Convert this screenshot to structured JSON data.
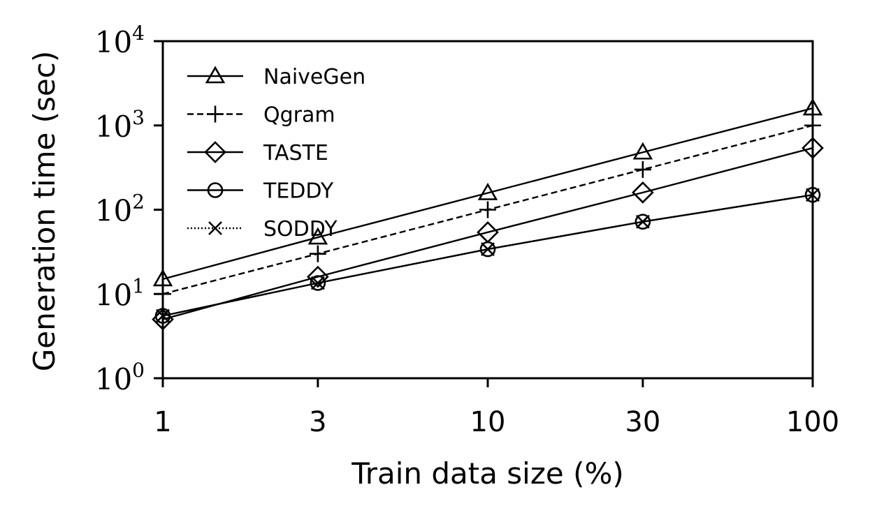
{
  "chart_data": {
    "type": "line",
    "xlabel": "Train data size (%)",
    "ylabel": "Generation time (sec)",
    "x_scale": "log",
    "y_scale": "log",
    "x": [
      1,
      3,
      10,
      30,
      100
    ],
    "x_tick_labels": [
      "1",
      "3",
      "10",
      "30",
      "100"
    ],
    "xlim": [
      1,
      100
    ],
    "ylim": [
      1,
      10000
    ],
    "y_ticks": [
      {
        "value": 1,
        "base": "10",
        "exp": "0"
      },
      {
        "value": 10,
        "base": "10",
        "exp": "1"
      },
      {
        "value": 100,
        "base": "10",
        "exp": "2"
      },
      {
        "value": 1000,
        "base": "10",
        "exp": "3"
      },
      {
        "value": 10000,
        "base": "10",
        "exp": "4"
      }
    ],
    "grid": false,
    "legend_position": "top-left",
    "series": [
      {
        "name": "NaiveGen",
        "marker": "triangle",
        "linestyle": "solid",
        "values": [
          15,
          47,
          158,
          480,
          1600
        ]
      },
      {
        "name": "Qgram",
        "marker": "plus",
        "linestyle": "dashed",
        "values": [
          10,
          30,
          100,
          300,
          1000
        ]
      },
      {
        "name": "TASTE",
        "marker": "diamond",
        "linestyle": "solid",
        "values": [
          5,
          16,
          54,
          160,
          540
        ]
      },
      {
        "name": "TEDDY",
        "marker": "circle",
        "linestyle": "solid",
        "values": [
          5.5,
          13.5,
          34,
          72,
          150
        ]
      },
      {
        "name": "SODDY",
        "marker": "x",
        "linestyle": "dotted",
        "values": [
          5.5,
          13.5,
          34,
          72,
          150
        ]
      }
    ]
  }
}
